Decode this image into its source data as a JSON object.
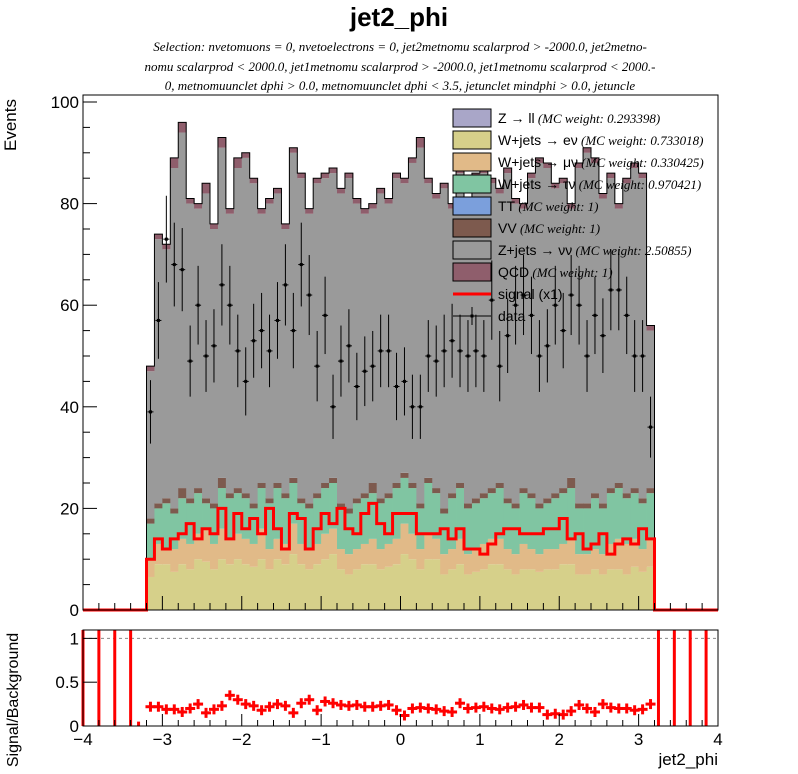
{
  "title": "jet2_phi",
  "selection_lines": [
    "Selection: nvetomuons = 0, nvetoelectrons = 0, jet2metnomu scalarprod > -2000.0, jet2metno-",
    "nomu scalarprod < 2000.0, jet1metnomu scalarprod > -2000.0, jet1metnomu scalarprod < 2000.-",
    "0, metnomuunclet dphi > 0.0, metnomuunclet dphi < 3.5, jetunclet mindphi > 0.0, jetuncle"
  ],
  "colors": {
    "zll": "#a9a6c8",
    "wev": "#d6d08a",
    "wmv": "#e1ba88",
    "wtv": "#80c5a2",
    "tt": "#7b9fdc",
    "vv": "#7d5a4e",
    "znn": "#9a9a9a",
    "qcd": "#8f5e6c",
    "signal": "#ff0000",
    "data": "#000000"
  },
  "chart_data": [
    {
      "type": "histogram",
      "ylabel": "Events",
      "xlim": [
        -4,
        4
      ],
      "ylim": [
        0,
        100
      ],
      "y_ticks": [
        "0",
        "20",
        "40",
        "60",
        "80",
        "100"
      ],
      "legend_position": "top-right",
      "legend": [
        {
          "key": "zll",
          "label": "Z → ll",
          "weight": "(MC weight: 0.293398)"
        },
        {
          "key": "wev",
          "label": "W+jets → eν",
          "weight": "(MC weight: 0.733018)"
        },
        {
          "key": "wmv",
          "label": "W+jets → μν",
          "weight": "(MC weight: 0.330425)"
        },
        {
          "key": "wtv",
          "label": "W+jets → τν",
          "weight": "(MC weight: 0.970421)"
        },
        {
          "key": "tt",
          "label": "TT",
          "weight": "(MC weight: 1)"
        },
        {
          "key": "vv",
          "label": "VV",
          "weight": "(MC weight: 1)"
        },
        {
          "key": "znn",
          "label": "Z+jets → νν",
          "weight": "(MC weight: 2.50855)"
        },
        {
          "key": "qcd",
          "label": "QCD",
          "weight": "(MC weight: 1)"
        },
        {
          "key": "signal",
          "label": "signal (x1)",
          "weight": ""
        },
        {
          "key": "data",
          "label": "data",
          "weight": ""
        }
      ],
      "bin_edges_start": -3.2,
      "bin_width": 0.1,
      "stack_order": [
        "zll",
        "wev",
        "wmv",
        "wtv",
        "tt",
        "vv",
        "znn",
        "qcd"
      ],
      "stacked_cumulative": {
        "wev": [
          6.5,
          9,
          9,
          7.5,
          9,
          8,
          10,
          9.5,
          8,
          10,
          9,
          10,
          9,
          8.5,
          10,
          8,
          10,
          9,
          11,
          9,
          8,
          9,
          10,
          11,
          8,
          7,
          8,
          9,
          9,
          8,
          8.5,
          9,
          11,
          10,
          8,
          10,
          10,
          7,
          8,
          9,
          7,
          7.5,
          8,
          9,
          9,
          8,
          7,
          8,
          8,
          7.5,
          8,
          8,
          9,
          9,
          7,
          7,
          8,
          7,
          8,
          8,
          7,
          8.5,
          7.5,
          8.5
        ],
        "wmv": [
          10,
          13,
          12,
          12,
          14,
          13,
          15,
          16,
          13,
          16,
          14,
          15,
          14,
          13,
          16,
          12,
          14,
          13,
          17,
          13,
          12,
          13,
          15,
          16,
          12,
          11,
          12,
          13,
          14,
          12,
          13,
          14,
          17,
          15,
          12,
          15,
          14,
          11,
          12,
          14,
          11,
          12,
          13,
          14,
          14,
          12,
          11,
          13,
          12,
          11,
          12,
          12,
          13,
          14,
          11,
          11,
          12,
          11,
          13,
          14,
          13,
          14,
          12,
          14
        ],
        "wtv": [
          17,
          20,
          21,
          19,
          22,
          21,
          23,
          21,
          20,
          24,
          22,
          23,
          22,
          20,
          24,
          21,
          24,
          22,
          25,
          21,
          20,
          22,
          24,
          25,
          20,
          19,
          21,
          22,
          23,
          21,
          22,
          24,
          26,
          24,
          20,
          25,
          23,
          19,
          22,
          24,
          20,
          21,
          22,
          23,
          24,
          21,
          20,
          23,
          22,
          20,
          21,
          22,
          23,
          24,
          20,
          20,
          22,
          20,
          23,
          24,
          22,
          23,
          21,
          23
        ],
        "vv": [
          18,
          21,
          22,
          20,
          24,
          22,
          24,
          22,
          21,
          26,
          23,
          24,
          23,
          21,
          25,
          22,
          25,
          23,
          26,
          22,
          21,
          23,
          25,
          26,
          21,
          20,
          22,
          23,
          25,
          22,
          23,
          25,
          27,
          25,
          21,
          26,
          24,
          20,
          23,
          25,
          21,
          22,
          23,
          24,
          25,
          22,
          21,
          24,
          23,
          21,
          22,
          23,
          24,
          26,
          21,
          21,
          23,
          21,
          24,
          25,
          23,
          24,
          22,
          24
        ],
        "znn": [
          47,
          73,
          71,
          87,
          94,
          80,
          79,
          82,
          75,
          91,
          78,
          87,
          89,
          84,
          78,
          80,
          82,
          75,
          90,
          85,
          78,
          84,
          85,
          86,
          82,
          85,
          80,
          78,
          79,
          82,
          80,
          85,
          84,
          88,
          91,
          84,
          81,
          83,
          79,
          86,
          80,
          85,
          86,
          84,
          82,
          86,
          80,
          79,
          85,
          88,
          87,
          83,
          84,
          79,
          87,
          90,
          88,
          81,
          85,
          79,
          84,
          87,
          85,
          55
        ],
        "qcd": [
          48,
          74,
          72,
          89,
          96,
          81,
          80,
          84,
          76,
          93,
          79,
          89,
          90,
          85,
          79,
          81,
          83,
          76,
          91,
          86,
          79,
          85,
          86,
          87,
          83,
          86,
          81,
          79,
          80,
          83,
          81,
          86,
          85,
          89,
          93,
          85,
          82,
          84,
          80,
          87,
          81,
          86,
          87,
          85,
          83,
          87,
          81,
          80,
          86,
          89,
          88,
          84,
          85,
          80,
          88,
          91,
          89,
          82,
          86,
          80,
          85,
          88,
          86,
          56
        ]
      },
      "signal": [
        10,
        14,
        12,
        14,
        15,
        17,
        14,
        16,
        15,
        20,
        14,
        19,
        16,
        18,
        15,
        20,
        16,
        12,
        19,
        18,
        12,
        16,
        19,
        17,
        20,
        16,
        15,
        19,
        21,
        17,
        15,
        19,
        19,
        19,
        15,
        15,
        15,
        16,
        14,
        16,
        12,
        12,
        11,
        13,
        15,
        16,
        16,
        15,
        15,
        15,
        16,
        16,
        18,
        14,
        15,
        12,
        13,
        15,
        11,
        13,
        14,
        13,
        16,
        14
      ],
      "data": [
        39,
        57,
        73,
        68,
        67,
        49,
        60,
        50,
        52,
        64,
        60,
        51,
        45,
        53,
        55,
        51,
        57,
        64,
        55,
        68,
        62,
        48,
        58,
        40,
        49,
        52,
        44,
        47,
        48,
        51,
        51,
        44,
        45,
        40,
        40,
        50,
        49,
        51,
        53,
        51,
        50,
        51,
        50,
        61,
        48,
        54,
        60,
        62,
        58,
        50,
        52,
        60,
        55,
        62,
        60,
        50,
        58,
        54,
        63,
        63,
        58,
        50,
        50,
        36
      ]
    },
    {
      "type": "ratio",
      "ylabel": "Signal/Background",
      "xlabel": "jet2_phi",
      "xlim": [
        -4,
        4
      ],
      "ylim": [
        0,
        1.05
      ],
      "x_ticks": [
        "−4",
        "−3",
        "−2",
        "−1",
        "0",
        "1",
        "2",
        "3",
        "4"
      ],
      "y_ticks": [
        "0",
        "0.5",
        "1"
      ],
      "ratio": [
        0.22,
        0.22,
        0.19,
        0.19,
        0.16,
        0.2,
        0.25,
        0.15,
        0.19,
        0.23,
        0.35,
        0.3,
        0.25,
        0.23,
        0.18,
        0.22,
        0.25,
        0.23,
        0.15,
        0.26,
        0.3,
        0.18,
        0.28,
        0.26,
        0.24,
        0.23,
        0.24,
        0.22,
        0.22,
        0.23,
        0.24,
        0.18,
        0.12,
        0.2,
        0.21,
        0.2,
        0.19,
        0.17,
        0.16,
        0.26,
        0.2,
        0.21,
        0.22,
        0.2,
        0.19,
        0.21,
        0.22,
        0.24,
        0.21,
        0.21,
        0.13,
        0.14,
        0.13,
        0.17,
        0.24,
        0.2,
        0.16,
        0.25,
        0.21,
        0.2,
        0.2,
        0.18,
        0.19,
        0.25
      ],
      "overflow_left_bins": [
        -4.0,
        -3.8,
        -3.6,
        -3.4
      ],
      "overflow_right_bins": [
        3.25,
        3.45,
        3.65,
        3.85
      ],
      "partial_bin": {
        "x": -3.3,
        "value": 0.05
      }
    }
  ]
}
